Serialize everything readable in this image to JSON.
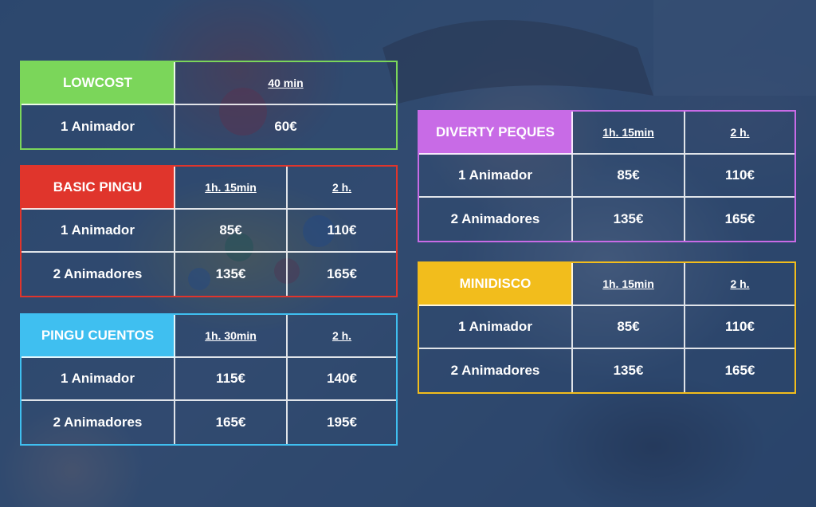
{
  "colors": {
    "lowcost": "#7bd65a",
    "basic_pingu": "#e0352c",
    "pingu_cuentos": "#3fbff0",
    "diverty_peques": "#c86be6",
    "minidisco": "#f2bd1c",
    "overlay": "#213a62"
  },
  "lowcost": {
    "name": "LOWCOST",
    "durations": [
      "40 min"
    ],
    "rows": [
      {
        "label": "1 Animador",
        "prices": [
          "60€"
        ]
      }
    ]
  },
  "basic_pingu": {
    "name": "BASIC PINGU",
    "durations": [
      "1h. 15min",
      "2 h."
    ],
    "rows": [
      {
        "label": "1 Animador",
        "prices": [
          "85€",
          "110€"
        ]
      },
      {
        "label": "2 Animadores",
        "prices": [
          "135€",
          "165€"
        ]
      }
    ]
  },
  "pingu_cuentos": {
    "name": "PINGU CUENTOS",
    "durations": [
      "1h. 30min",
      "2 h."
    ],
    "rows": [
      {
        "label": "1 Animador",
        "prices": [
          "115€",
          "140€"
        ]
      },
      {
        "label": "2 Animadores",
        "prices": [
          "165€",
          "195€"
        ]
      }
    ]
  },
  "diverty_peques": {
    "name": "DIVERTY PEQUES",
    "durations": [
      "1h. 15min",
      "2 h."
    ],
    "rows": [
      {
        "label": "1 Animador",
        "prices": [
          "85€",
          "110€"
        ]
      },
      {
        "label": "2 Animadores",
        "prices": [
          "135€",
          "165€"
        ]
      }
    ]
  },
  "minidisco": {
    "name": "MINIDISCO",
    "durations": [
      "1h. 15min",
      "2 h."
    ],
    "rows": [
      {
        "label": "1 Animador",
        "prices": [
          "85€",
          "110€"
        ]
      },
      {
        "label": "2 Animadores",
        "prices": [
          "135€",
          "165€"
        ]
      }
    ]
  }
}
